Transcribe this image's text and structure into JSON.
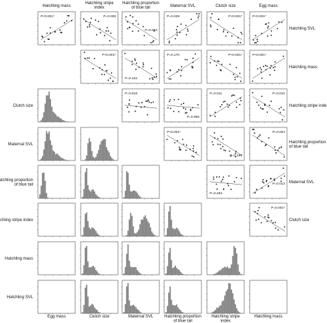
{
  "chart_data": {
    "type": "scatter-histogram-matrix",
    "variables": [
      "Egg mass",
      "Clutch size",
      "Maternal SVL",
      "Hatchling proportion of blue tail",
      "Hatchling stripe index",
      "Hatchling mass",
      "Hatchling SVL"
    ],
    "top_labels": [
      {
        "lines": [
          "Hatchling mass"
        ]
      },
      {
        "lines": [
          "Hatchling stripe",
          "index"
        ]
      },
      {
        "lines": [
          "Hatchling proportion",
          "of blue tail"
        ]
      },
      {
        "lines": [
          "Maternal SVL"
        ]
      },
      {
        "lines": [
          "Clutch size"
        ]
      },
      {
        "lines": [
          "Egg mass"
        ]
      }
    ],
    "right_labels": [
      {
        "lines": [
          "Hatchling SVL"
        ]
      },
      {
        "lines": [
          "Hatchling mass"
        ]
      },
      {
        "lines": [
          "Hatchling stripe index"
        ]
      },
      {
        "lines": [
          "Hatchling proportion",
          "of blue tail"
        ]
      },
      {
        "lines": [
          "Maternal SVL"
        ]
      },
      {
        "lines": [
          "Clutch size"
        ]
      }
    ],
    "left_labels": [
      {
        "lines": [
          "Clutch size"
        ]
      },
      {
        "lines": [
          "Maternal SVL"
        ]
      },
      {
        "lines": [
          "Hatchling proportion",
          "of blue tail"
        ]
      },
      {
        "lines": [
          "Hatchling stripe index"
        ]
      },
      {
        "lines": [
          "Hatchling mass"
        ]
      },
      {
        "lines": [
          "Hatchling SVL"
        ]
      }
    ],
    "bottom_labels": [
      {
        "lines": [
          "Egg mass"
        ]
      },
      {
        "lines": [
          "Clutch size"
        ]
      },
      {
        "lines": [
          "Maternal SVL"
        ]
      },
      {
        "lines": [
          "Hatchling proportion",
          "of blue tail"
        ]
      },
      {
        "lines": [
          "Hatchling stripe",
          "index"
        ]
      },
      {
        "lines": [
          "Hatchling mass"
        ]
      }
    ],
    "scatter_panels": [
      {
        "row": 0,
        "col": 0,
        "p_label": "P<0.001*",
        "p_pos": "top-left",
        "trend": "positive"
      },
      {
        "row": 0,
        "col": 1,
        "p_label": "P=0.006",
        "p_pos": "top-right",
        "trend": "negative"
      },
      {
        "row": 0,
        "col": 2,
        "p_label": "P=0.053",
        "p_pos": "mid-right",
        "trend": "negative"
      },
      {
        "row": 0,
        "col": 3,
        "p_label": "P=0.039",
        "p_pos": "top-left",
        "trend": "positive"
      },
      {
        "row": 0,
        "col": 4,
        "p_label": "P<0.001*",
        "p_pos": "top-right",
        "trend": "negative"
      },
      {
        "row": 0,
        "col": 5,
        "p_label": "P<0.001*",
        "p_pos": "top-left",
        "trend": "positive"
      },
      {
        "row": 1,
        "col": 1,
        "p_label": "P<0.001*",
        "p_pos": "top-right",
        "trend": "negative"
      },
      {
        "row": 1,
        "col": 2,
        "p_label": "P=0.102",
        "p_pos": "bottom-left",
        "trend": "negative"
      },
      {
        "row": 1,
        "col": 3,
        "p_label": "P=0.170",
        "p_pos": "top-left",
        "trend": "positive"
      },
      {
        "row": 1,
        "col": 4,
        "p_label": "P<0.001*",
        "p_pos": "top-right",
        "trend": "negative"
      },
      {
        "row": 1,
        "col": 5,
        "p_label": "P<0.001*",
        "p_pos": "top-left",
        "trend": "positive"
      },
      {
        "row": 2,
        "col": 2,
        "p_label": "P=0.818",
        "p_pos": "top-left",
        "trend": "flat"
      },
      {
        "row": 2,
        "col": 3,
        "p_label": "P=0.955",
        "p_pos": "bottom-right",
        "trend": "flat"
      },
      {
        "row": 2,
        "col": 4,
        "p_label": "P=0.011",
        "p_pos": "top-left",
        "trend": "positive"
      },
      {
        "row": 2,
        "col": 5,
        "p_label": "P=0.010",
        "p_pos": "top-right",
        "trend": "negative"
      },
      {
        "row": 3,
        "col": 3,
        "p_label": "P<0.001*",
        "p_pos": "top-left",
        "trend": "negative"
      },
      {
        "row": 3,
        "col": 4,
        "p_label": "P=0.189",
        "p_pos": "bottom-right",
        "trend": "negative"
      },
      {
        "row": 3,
        "col": 5,
        "p_label": "P=0.004",
        "p_pos": "top-right",
        "trend": "negative"
      },
      {
        "row": 4,
        "col": 4,
        "p_label": "P=0.493",
        "p_pos": "bottom-left",
        "trend": "flat"
      },
      {
        "row": 4,
        "col": 5,
        "p_label": "P=0.013",
        "p_pos": "mid-right",
        "trend": "positive"
      },
      {
        "row": 5,
        "col": 5,
        "p_label": "P=0.001*",
        "p_pos": "top-right",
        "trend": "negative"
      }
    ],
    "histogram_panels": [
      {
        "row": 2,
        "col": 0,
        "shape": "right-skewed"
      },
      {
        "row": 3,
        "col": 0,
        "shape": "right-skewed"
      },
      {
        "row": 3,
        "col": 1,
        "shape": "bimodal"
      },
      {
        "row": 4,
        "col": 0,
        "shape": "narrow-left"
      },
      {
        "row": 4,
        "col": 1,
        "shape": "left-peak"
      },
      {
        "row": 4,
        "col": 2,
        "shape": "left-peak"
      },
      {
        "row": 5,
        "col": 0,
        "shape": "empty"
      },
      {
        "row": 5,
        "col": 1,
        "shape": "left-peak"
      },
      {
        "row": 5,
        "col": 2,
        "shape": "bimodal"
      },
      {
        "row": 5,
        "col": 3,
        "shape": "left-peak"
      },
      {
        "row": 6,
        "col": 0,
        "shape": "empty"
      },
      {
        "row": 6,
        "col": 1,
        "shape": "left-peak"
      },
      {
        "row": 6,
        "col": 2,
        "shape": "left-peak"
      },
      {
        "row": 6,
        "col": 3,
        "shape": "left-peak"
      },
      {
        "row": 6,
        "col": 4,
        "shape": "right-peak"
      },
      {
        "row": 7,
        "col": 0,
        "shape": "empty"
      },
      {
        "row": 7,
        "col": 1,
        "shape": "left-peak"
      },
      {
        "row": 7,
        "col": 2,
        "shape": "left-peak"
      },
      {
        "row": 7,
        "col": 3,
        "shape": "left-peak"
      },
      {
        "row": 7,
        "col": 4,
        "shape": "central"
      },
      {
        "row": 7,
        "col": 5,
        "shape": "empty"
      }
    ],
    "grid": false,
    "colors": {
      "marks": "#222222",
      "bars": "#777777",
      "axes": "#444444",
      "background": "#ffffff"
    }
  }
}
